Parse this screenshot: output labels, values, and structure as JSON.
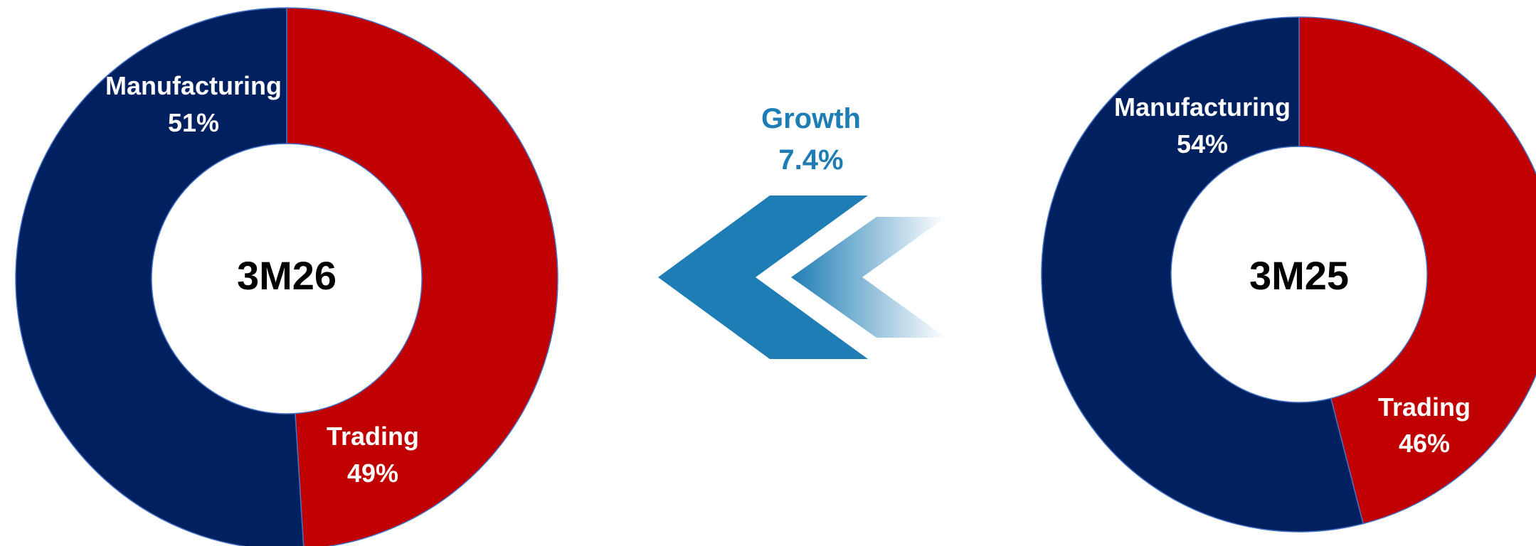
{
  "chart_data": [
    {
      "type": "pie",
      "title": "",
      "center_label": "3M26",
      "categories": [
        "Trading",
        "Manufacturing"
      ],
      "values": [
        49,
        51
      ],
      "value_labels": [
        "49%",
        "51%"
      ],
      "colors": [
        "#c00000",
        "#002060"
      ]
    },
    {
      "type": "pie",
      "title": "",
      "center_label": "3M25",
      "categories": [
        "Trading",
        "Manufacturing"
      ],
      "values": [
        46,
        54
      ],
      "value_labels": [
        "46%",
        "54%"
      ],
      "colors": [
        "#c00000",
        "#002060"
      ]
    }
  ],
  "growth": {
    "label": "Growth",
    "value": "7.4%",
    "color": "#1f7db5",
    "icon": "double-chevron-left-icon"
  }
}
